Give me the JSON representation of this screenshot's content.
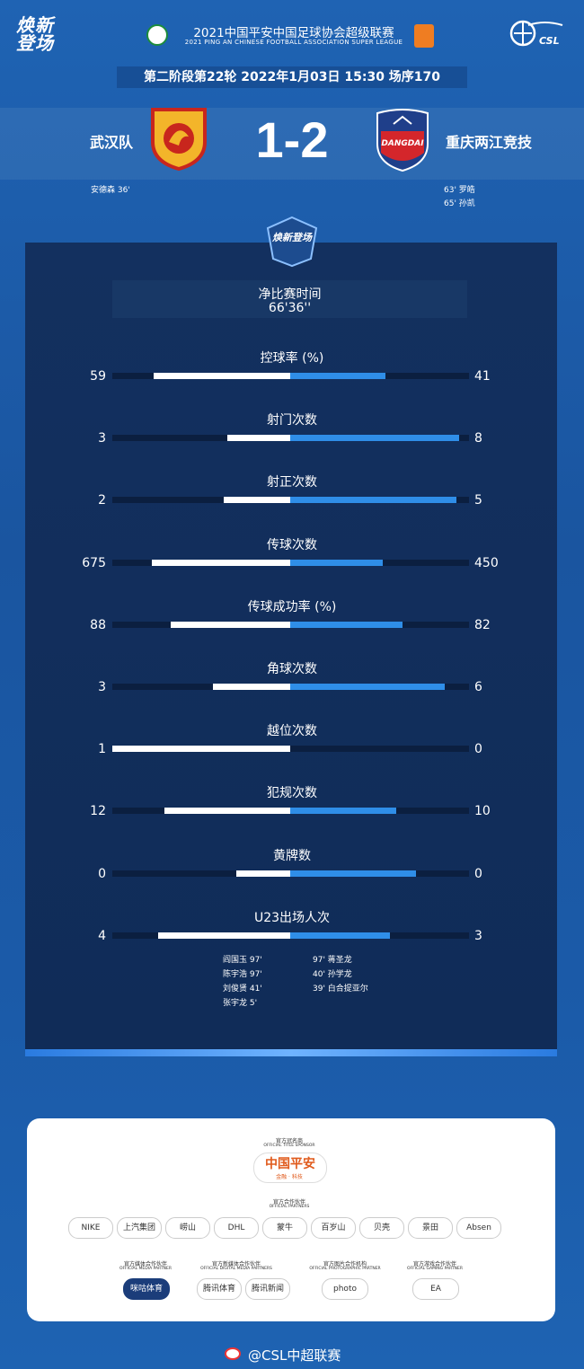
{
  "header": {
    "logo_text": "焕新登场",
    "league_title": "2021中国平安中国足球协会超级联赛",
    "league_subtitle": "2021 PING AN CHINESE FOOTBALL ASSOCIATION SUPER LEAGUE",
    "csl_label": "CSL",
    "match_info": "第二阶段第22轮  2022年1月03日 15:30 场序170"
  },
  "match": {
    "home_team": "武汉队",
    "away_team": "重庆两江竞技",
    "score": "1-2",
    "home_scorers": [
      "安德森 36'"
    ],
    "away_scorers": [
      "63'  罗皓",
      "65'  孙凯"
    ],
    "away_badge_text": "DANGDAI"
  },
  "panel": {
    "logo_text": "焕新登场",
    "time_label": "净比赛时间",
    "time_value": "66'36''"
  },
  "stats": [
    {
      "label": "控球率 (%)",
      "home": 59,
      "away": 41,
      "home_display": "59",
      "away_display": "41"
    },
    {
      "label": "射门次数",
      "home": 3,
      "away": 8,
      "home_display": "3",
      "away_display": "8"
    },
    {
      "label": "射正次数",
      "home": 2,
      "away": 5,
      "home_display": "2",
      "away_display": "5"
    },
    {
      "label": "传球次数",
      "home": 675,
      "away": 450,
      "home_display": "675",
      "away_display": "450"
    },
    {
      "label": "传球成功率 (%)",
      "home": 88,
      "away": 82,
      "home_display": "88",
      "away_display": "82"
    },
    {
      "label": "角球次数",
      "home": 3,
      "away": 6,
      "home_display": "3",
      "away_display": "6"
    },
    {
      "label": "越位次数",
      "home": 1,
      "away": 0,
      "home_display": "1",
      "away_display": "0"
    },
    {
      "label": "犯规次数",
      "home": 12,
      "away": 10,
      "home_display": "12",
      "away_display": "10"
    },
    {
      "label": "黄牌数",
      "home": 0,
      "away": 0,
      "home_display": "0",
      "away_display": "0"
    },
    {
      "label": "U23出场人次",
      "home": 4,
      "away": 3,
      "home_display": "4",
      "away_display": "3"
    }
  ],
  "u23": {
    "home_players": [
      "阎国玉  97'",
      "陈宇浩  97'",
      "刘俊贤  41'",
      "张宇龙  5'"
    ],
    "away_players": [
      "97'  蒋圣龙",
      "40'  孙学龙",
      "39'  白合提亚尔"
    ]
  },
  "sponsors": {
    "title_sponsor_head": "官方冠名商",
    "title_sponsor_sub": "OFFICIAL TITLE SPONSOR",
    "title_sponsor": "中国平安",
    "title_sponsor_tag": "金融 · 科技",
    "partners_head": "官方合作伙伴",
    "partners_sub": "OFFICIAL PARTNERS",
    "partners": [
      "NIKE",
      "上汽集团",
      "崂山",
      "DHL",
      "蒙牛",
      "百岁山",
      "贝壳",
      "景田",
      "Absen"
    ],
    "media_head": "官方媒体合作伙伴",
    "media_sub": "OFFICIAL MEDIA PARTNER",
    "media": [
      "咪咕体育"
    ],
    "newmedia_head": "官方新媒体合作伙伴",
    "newmedia_sub": "OFFICIAL DIGITAL MEDIA PARTNERS",
    "newmedia": [
      "腾讯体育",
      "腾讯新闻"
    ],
    "photo_head": "官方图片合作机构",
    "photo_sub": "OFFICIAL PHOTOGRAPHIC PARTNER",
    "photo": [
      "photo"
    ],
    "game_head": "官方游戏合作伙伴",
    "game_sub": "OFFICIAL GAMING PARTNER",
    "game": [
      "EA"
    ]
  },
  "footer": {
    "weibo": "@CSL中超联赛"
  }
}
